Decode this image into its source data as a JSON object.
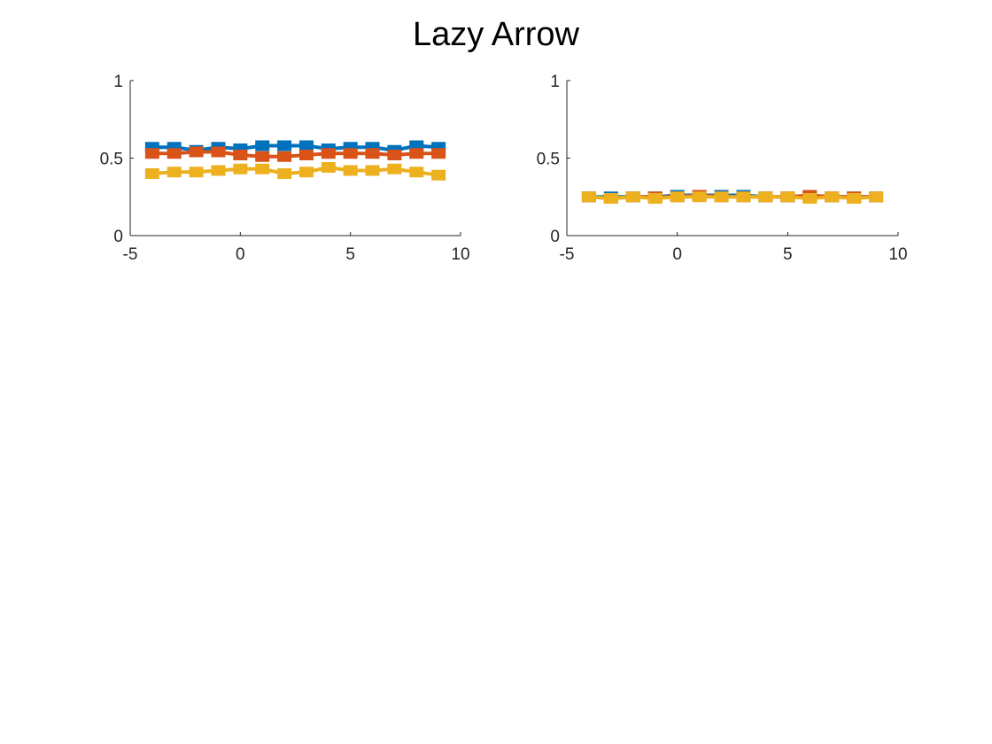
{
  "title": "Lazy Arrow",
  "chart_data": [
    {
      "type": "line",
      "xlim": [
        -5,
        10
      ],
      "ylim": [
        0,
        1
      ],
      "xticks": [
        -5,
        0,
        5,
        10
      ],
      "yticks": [
        0,
        0.5,
        1
      ],
      "xtick_labels": [
        "-5",
        "0",
        "5",
        "10"
      ],
      "ytick_labels": [
        "0",
        "0.5",
        "1"
      ],
      "grid": false,
      "marker": "square",
      "x": [
        -4,
        -3,
        -2,
        -1,
        0,
        1,
        2,
        3,
        4,
        5,
        6,
        7,
        8,
        9
      ],
      "series": [
        {
          "color": "#0072BD",
          "values": [
            0.57,
            0.57,
            0.55,
            0.57,
            0.56,
            0.58,
            0.58,
            0.58,
            0.56,
            0.57,
            0.57,
            0.55,
            0.58,
            0.57
          ]
        },
        {
          "color": "#D95319",
          "values": [
            0.53,
            0.53,
            0.54,
            0.54,
            0.52,
            0.51,
            0.51,
            0.52,
            0.53,
            0.53,
            0.53,
            0.52,
            0.53,
            0.53
          ]
        },
        {
          "color": "#EDB120",
          "values": [
            0.4,
            0.41,
            0.41,
            0.42,
            0.43,
            0.43,
            0.4,
            0.41,
            0.44,
            0.42,
            0.42,
            0.43,
            0.41,
            0.39
          ]
        }
      ]
    },
    {
      "type": "line",
      "xlim": [
        -5,
        10
      ],
      "ylim": [
        0,
        1
      ],
      "xticks": [
        -5,
        0,
        5,
        10
      ],
      "yticks": [
        0,
        0.5,
        1
      ],
      "xtick_labels": [
        "-5",
        "0",
        "5",
        "10"
      ],
      "ytick_labels": [
        "0",
        "0.5",
        "1"
      ],
      "grid": false,
      "marker": "square",
      "x": [
        -4,
        -3,
        -2,
        -1,
        0,
        1,
        2,
        3,
        4,
        5,
        6,
        7,
        8,
        9
      ],
      "series": [
        {
          "color": "#0072BD",
          "values": [
            0.25,
            0.25,
            0.25,
            0.25,
            0.26,
            0.26,
            0.26,
            0.26,
            0.25,
            0.25,
            0.25,
            0.25,
            0.25,
            0.25
          ]
        },
        {
          "color": "#D95319",
          "values": [
            0.25,
            0.24,
            0.25,
            0.25,
            0.25,
            0.26,
            0.25,
            0.25,
            0.25,
            0.25,
            0.26,
            0.25,
            0.25,
            0.25
          ]
        },
        {
          "color": "#EDB120",
          "values": [
            0.25,
            0.24,
            0.25,
            0.24,
            0.25,
            0.25,
            0.25,
            0.25,
            0.25,
            0.25,
            0.24,
            0.25,
            0.24,
            0.25
          ]
        }
      ]
    }
  ]
}
